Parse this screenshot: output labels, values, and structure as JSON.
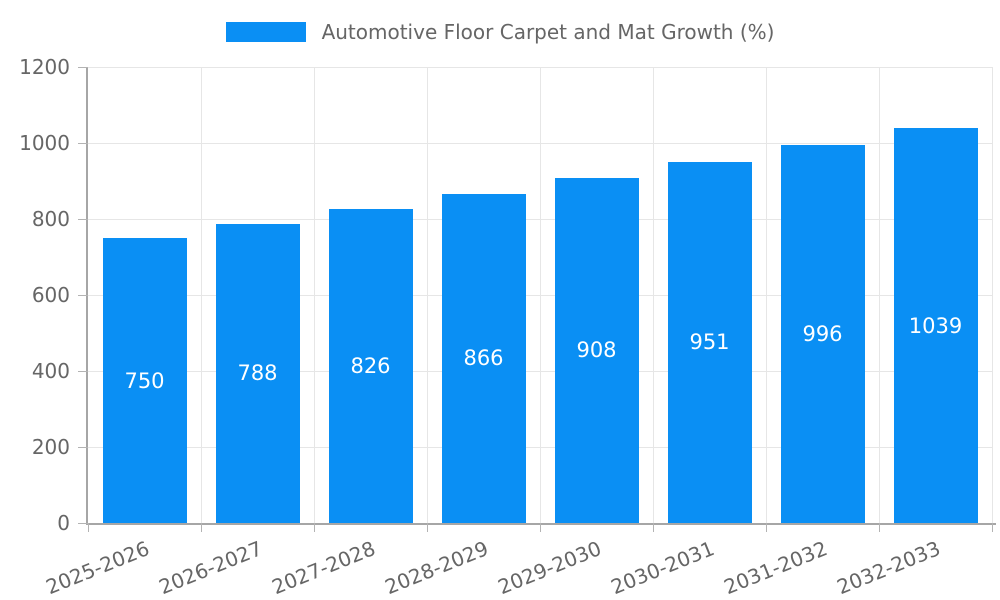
{
  "chart_data": {
    "type": "bar",
    "title": "Automotive Floor Carpet and Mat Growth (%)",
    "categories": [
      "2025-2026",
      "2026-2027",
      "2027-2028",
      "2028-2029",
      "2029-2030",
      "2030-2031",
      "2031-2032",
      "2032-2033"
    ],
    "values": [
      750,
      788,
      826,
      866,
      908,
      951,
      996,
      1039
    ],
    "xlabel": "",
    "ylabel": "",
    "ylim": [
      0,
      1200
    ],
    "yticks": [
      0,
      200,
      400,
      600,
      800,
      1000,
      1200
    ],
    "grid": true,
    "legend_position": "top-center",
    "x_tick_rotation_deg": -22,
    "value_labels_position": "center-of-bar",
    "colors": {
      "bar": "#0a8ff4",
      "grid": "#e6e6e6",
      "axis": "#a6a6a6",
      "tick": "#b3b3b3",
      "tick_label": "#666666",
      "value_label": "#ffffff",
      "background": "#ffffff"
    }
  }
}
